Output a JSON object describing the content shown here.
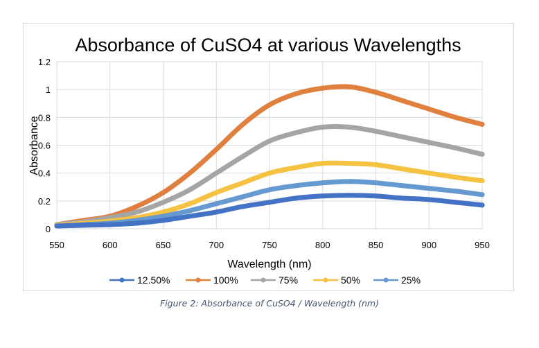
{
  "chart_data": {
    "type": "line",
    "title": "Absorbance of CuSO4 at various Wavelengths",
    "xlabel": "Wavelength (nm)",
    "ylabel": "Absorbance",
    "xlim": [
      550,
      950
    ],
    "ylim": [
      0,
      1.2
    ],
    "xticks": [
      550,
      600,
      650,
      700,
      750,
      800,
      850,
      900,
      950
    ],
    "yticks": [
      0,
      0.2,
      0.4,
      0.6,
      0.8,
      1,
      1.2
    ],
    "ytick_labels": [
      "0",
      "0.2",
      "0.4",
      "0.6",
      "0.8",
      "1",
      "1.2"
    ],
    "grid": true,
    "legend_position": "bottom",
    "x": [
      550,
      575,
      600,
      625,
      650,
      675,
      700,
      725,
      750,
      775,
      800,
      825,
      850,
      875,
      900,
      925,
      950
    ],
    "series": [
      {
        "name": "12.50%",
        "color": "#4472C4",
        "values": [
          0.02,
          0.025,
          0.03,
          0.04,
          0.06,
          0.09,
          0.12,
          0.16,
          0.19,
          0.22,
          0.235,
          0.24,
          0.235,
          0.22,
          0.21,
          0.19,
          0.17
        ]
      },
      {
        "name": "100%",
        "color": "#E0803F",
        "values": [
          0.03,
          0.06,
          0.09,
          0.16,
          0.26,
          0.4,
          0.57,
          0.75,
          0.89,
          0.97,
          1.01,
          1.02,
          0.98,
          0.92,
          0.86,
          0.8,
          0.75
        ]
      },
      {
        "name": "75%",
        "color": "#A5A5A5",
        "values": [
          0.03,
          0.05,
          0.08,
          0.12,
          0.19,
          0.28,
          0.4,
          0.52,
          0.63,
          0.69,
          0.73,
          0.73,
          0.7,
          0.66,
          0.62,
          0.58,
          0.535
        ]
      },
      {
        "name": "50%",
        "color": "#F5C242",
        "values": [
          0.025,
          0.04,
          0.055,
          0.08,
          0.12,
          0.18,
          0.26,
          0.33,
          0.4,
          0.44,
          0.47,
          0.47,
          0.46,
          0.43,
          0.4,
          0.37,
          0.345
        ]
      },
      {
        "name": "25%",
        "color": "#6699D0",
        "values": [
          0.02,
          0.03,
          0.04,
          0.06,
          0.09,
          0.13,
          0.18,
          0.23,
          0.28,
          0.31,
          0.33,
          0.34,
          0.33,
          0.31,
          0.29,
          0.27,
          0.245
        ]
      }
    ]
  },
  "caption": "Figure 2: Absorbance of CuSO4 / Wavelength (nm)"
}
